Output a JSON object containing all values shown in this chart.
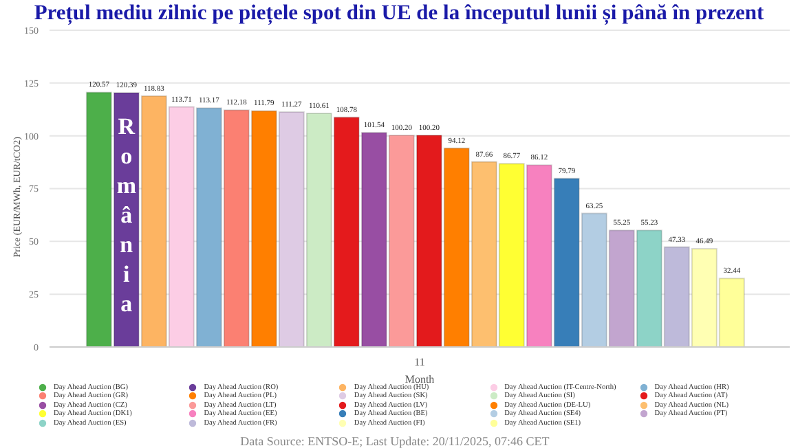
{
  "chart_data": {
    "type": "bar",
    "title": "Prețul mediu zilnic pe piețele spot din UE de la începutul lunii și până în prezent",
    "xlabel": "Month",
    "ylabel": "Price (EUR/MWh, EUR/tCO2)",
    "categories": [
      "11"
    ],
    "series": [
      {
        "name": "Day Ahead Auction (BG)",
        "color": "#4daf4a",
        "values": [
          120.57
        ]
      },
      {
        "name": "Day Ahead Auction (RO)",
        "color": "#6a3d9a",
        "values": [
          120.39
        ]
      },
      {
        "name": "Day Ahead Auction (HU)",
        "color": "#fdb462",
        "values": [
          118.83
        ]
      },
      {
        "name": "Day Ahead Auction (IT-Centre-North)",
        "color": "#fccde5",
        "values": [
          113.71
        ]
      },
      {
        "name": "Day Ahead Auction (HR)",
        "color": "#80b1d3",
        "values": [
          113.17
        ]
      },
      {
        "name": "Day Ahead Auction (GR)",
        "color": "#fb8072",
        "values": [
          112.18
        ]
      },
      {
        "name": "Day Ahead Auction (PL)",
        "color": "#ff7f00",
        "values": [
          111.79
        ]
      },
      {
        "name": "Day Ahead Auction (SK)",
        "color": "#decbe4",
        "values": [
          111.27
        ]
      },
      {
        "name": "Day Ahead Auction (SI)",
        "color": "#ccebc5",
        "values": [
          110.61
        ]
      },
      {
        "name": "Day Ahead Auction (AT)",
        "color": "#e41a1c",
        "values": [
          108.78
        ]
      },
      {
        "name": "Day Ahead Auction (CZ)",
        "color": "#984ea3",
        "values": [
          101.54
        ]
      },
      {
        "name": "Day Ahead Auction (LT)",
        "color": "#fb9a99",
        "values": [
          100.2
        ],
        "value_labels": [
          "100.20"
        ]
      },
      {
        "name": "Day Ahead Auction (LV)",
        "color": "#e31a1c",
        "values": [
          100.2
        ],
        "value_labels": [
          "100.20"
        ]
      },
      {
        "name": "Day Ahead Auction (DE-LU)",
        "color": "#ff7f00",
        "values": [
          94.12
        ]
      },
      {
        "name": "Day Ahead Auction (NL)",
        "color": "#fdbf6f",
        "values": [
          87.66
        ]
      },
      {
        "name": "Day Ahead Auction (DK1)",
        "color": "#ffff33",
        "values": [
          86.77
        ]
      },
      {
        "name": "Day Ahead Auction (EE)",
        "color": "#f781bf",
        "values": [
          86.12
        ]
      },
      {
        "name": "Day Ahead Auction (BE)",
        "color": "#377eb8",
        "values": [
          79.79
        ]
      },
      {
        "name": "Day Ahead Auction (SE4)",
        "color": "#b3cde3",
        "values": [
          63.25
        ]
      },
      {
        "name": "Day Ahead Auction (PT)",
        "color": "#c2a5cf",
        "values": [
          55.25
        ]
      },
      {
        "name": "Day Ahead Auction (ES)",
        "color": "#8dd3c7",
        "values": [
          55.23
        ]
      },
      {
        "name": "Day Ahead Auction (FR)",
        "color": "#bebada",
        "values": [
          47.33
        ]
      },
      {
        "name": "Day Ahead Auction (FI)",
        "color": "#ffffb3",
        "values": [
          46.49
        ]
      },
      {
        "name": "Day Ahead Auction (SE1)",
        "color": "#ffff99",
        "values": [
          32.44
        ]
      }
    ],
    "ylim": [
      0,
      150
    ],
    "yticks": [
      0,
      25,
      50,
      75,
      100,
      125,
      150
    ],
    "grid": "y",
    "legend": "bottom",
    "data_labels": true,
    "annotations": [
      "România",
      "Data Source: ENTSO-E; Last Update: 20/11/2025, 07:46 CET"
    ]
  }
}
